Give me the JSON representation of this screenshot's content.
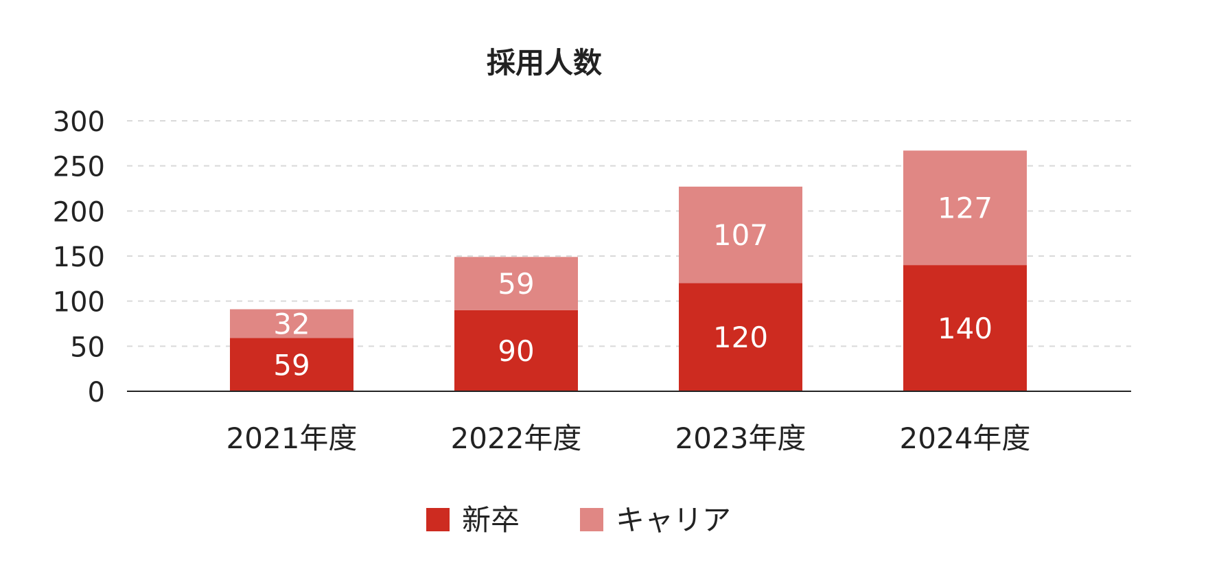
{
  "chart_data": {
    "type": "bar",
    "stacked": true,
    "title": "採用人数",
    "xlabel": "",
    "ylabel": "",
    "categories": [
      "2021年度",
      "2022年度",
      "2023年度",
      "2024年度"
    ],
    "series": [
      {
        "name": "新卒",
        "color": "#CD2B20",
        "values": [
          59,
          90,
          120,
          140
        ]
      },
      {
        "name": "キャリア",
        "color": "#E08784",
        "values": [
          32,
          59,
          107,
          127
        ]
      }
    ],
    "ylim": [
      0,
      300
    ],
    "yticks": [
      0,
      50,
      100,
      150,
      200,
      250,
      300
    ],
    "grid": true,
    "legend_position": "bottom"
  }
}
